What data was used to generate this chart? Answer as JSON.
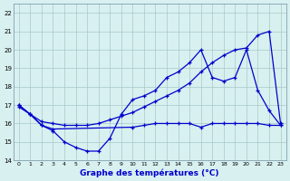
{
  "title": "Graphe des températures (°C)",
  "background_color": "#d8f0f0",
  "grid_color": "#a8c8c8",
  "line_color": "#0000cc",
  "ylim": [
    14,
    22.5
  ],
  "xlim": [
    -0.5,
    23.5
  ],
  "yticks": [
    14,
    15,
    16,
    17,
    18,
    19,
    20,
    21,
    22
  ],
  "xticks": [
    0,
    1,
    2,
    3,
    4,
    5,
    6,
    7,
    8,
    9,
    10,
    11,
    12,
    13,
    14,
    15,
    16,
    17,
    18,
    19,
    20,
    21,
    22,
    23
  ],
  "line1_x": [
    0,
    1,
    2,
    3,
    4,
    5,
    6,
    7,
    8,
    9,
    10,
    11,
    12,
    13,
    14,
    15,
    16,
    17,
    18,
    19,
    20,
    21,
    22,
    23
  ],
  "line1_y": [
    16.9,
    16.5,
    15.9,
    15.6,
    15.0,
    14.7,
    14.5,
    14.5,
    15.2,
    16.5,
    17.3,
    17.5,
    17.8,
    18.5,
    18.8,
    19.3,
    20.0,
    18.5,
    18.3,
    18.5,
    20.0,
    17.8,
    16.7,
    15.9
  ],
  "line2_x": [
    0,
    1,
    2,
    3,
    10,
    11,
    12,
    13,
    14,
    15,
    16,
    17,
    18,
    19,
    20,
    21,
    22,
    23
  ],
  "line2_y": [
    17.0,
    16.5,
    15.9,
    15.7,
    15.8,
    15.9,
    16.0,
    16.0,
    16.0,
    16.0,
    15.8,
    16.0,
    16.0,
    16.0,
    16.0,
    16.0,
    15.9,
    15.9
  ],
  "line3_x": [
    0,
    1,
    2,
    3,
    4,
    5,
    6,
    7,
    8,
    9,
    10,
    11,
    12,
    13,
    14,
    15,
    16,
    17,
    18,
    19,
    20,
    21,
    22,
    23
  ],
  "line3_y": [
    17.0,
    16.5,
    16.1,
    16.0,
    15.9,
    15.9,
    15.9,
    16.0,
    16.2,
    16.4,
    16.6,
    16.9,
    17.2,
    17.5,
    17.8,
    18.2,
    18.8,
    19.3,
    19.7,
    20.0,
    20.1,
    20.8,
    21.0,
    16.0
  ]
}
